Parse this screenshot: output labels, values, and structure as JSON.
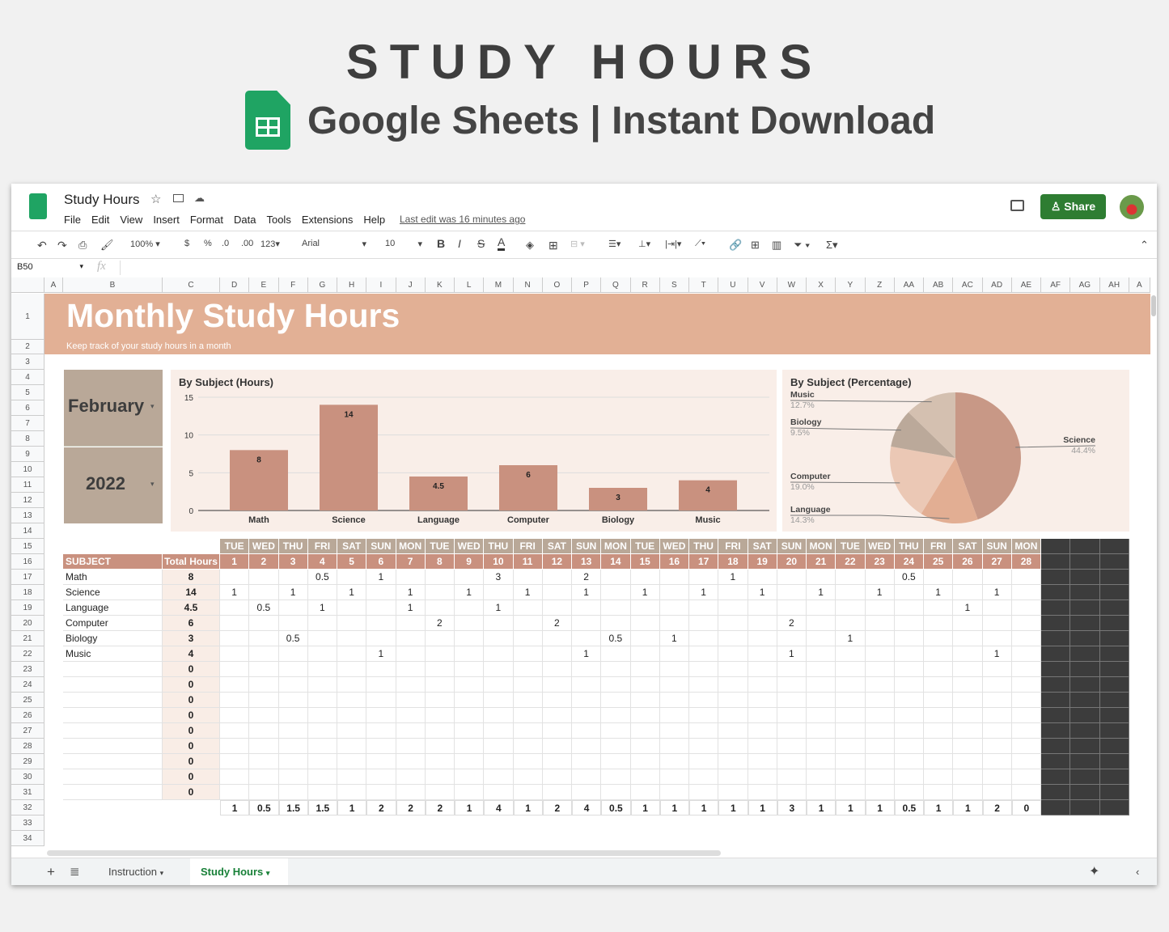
{
  "hero": {
    "title": "STUDY HOURS",
    "subtitle": "Google Sheets | Instant Download"
  },
  "doc": {
    "title": "Study Hours",
    "last_edit": "Last edit was 16 minutes ago",
    "share": "Share"
  },
  "menu": [
    "File",
    "Edit",
    "View",
    "Insert",
    "Format",
    "Data",
    "Tools",
    "Extensions",
    "Help"
  ],
  "toolbar": {
    "zoom": "100%",
    "currency": "$",
    "percent": "%",
    "dec_less": ".0",
    "dec_more": ".00",
    "format": "123",
    "font": "Arial",
    "size": "10"
  },
  "formula_bar": {
    "cell_ref": "B50",
    "fx": "fx",
    "value": ""
  },
  "columns": [
    "A",
    "B",
    "C",
    "D",
    "E",
    "F",
    "G",
    "H",
    "I",
    "J",
    "K",
    "L",
    "M",
    "N",
    "O",
    "P",
    "Q",
    "R",
    "S",
    "T",
    "U",
    "V",
    "W",
    "X",
    "Y",
    "Z",
    "AA",
    "AB",
    "AC",
    "AD",
    "AE",
    "AF",
    "AG",
    "AH",
    "A"
  ],
  "sheet": {
    "title": "Monthly Study Hours",
    "subtitle": "Keep track of your study hours in a month",
    "month": "February",
    "year": "2022",
    "subject_header": "SUBJECT",
    "total_header": "Total Hours",
    "day_names": [
      "TUE",
      "WED",
      "THU",
      "FRI",
      "SAT",
      "SUN",
      "MON",
      "TUE",
      "WED",
      "THU",
      "FRI",
      "SAT",
      "SUN",
      "MON",
      "TUE",
      "WED",
      "THU",
      "FRI",
      "SAT",
      "SUN",
      "MON",
      "TUE",
      "WED",
      "THU",
      "FRI",
      "SAT",
      "SUN",
      "MON"
    ],
    "subjects": [
      {
        "name": "Math",
        "total": "8",
        "hours": {
          "4": "0.5",
          "6": "1",
          "10": "3",
          "13": "2",
          "18": "1",
          "24": "0.5"
        }
      },
      {
        "name": "Science",
        "total": "14",
        "hours": {
          "1": "1",
          "3": "1",
          "5": "1",
          "7": "1",
          "9": "1",
          "11": "1",
          "13": "1",
          "15": "1",
          "17": "1",
          "19": "1",
          "21": "1",
          "23": "1",
          "25": "1",
          "27": "1"
        }
      },
      {
        "name": "Language",
        "total": "4.5",
        "hours": {
          "2": "0.5",
          "4": "1",
          "7": "1",
          "10": "1",
          "26": "1"
        }
      },
      {
        "name": "Computer",
        "total": "6",
        "hours": {
          "8": "2",
          "12": "2",
          "20": "2"
        }
      },
      {
        "name": "Biology",
        "total": "3",
        "hours": {
          "3": "0.5",
          "14": "0.5",
          "16": "1",
          "22": "1"
        }
      },
      {
        "name": "Music",
        "total": "4",
        "hours": {
          "6": "1",
          "13": "1",
          "20": "1",
          "27": "1"
        }
      },
      {
        "name": "",
        "total": "0",
        "hours": {}
      },
      {
        "name": "",
        "total": "0",
        "hours": {}
      },
      {
        "name": "",
        "total": "0",
        "hours": {}
      },
      {
        "name": "",
        "total": "0",
        "hours": {}
      },
      {
        "name": "",
        "total": "0",
        "hours": {}
      },
      {
        "name": "",
        "total": "0",
        "hours": {}
      },
      {
        "name": "",
        "total": "0",
        "hours": {}
      },
      {
        "name": "",
        "total": "0",
        "hours": {}
      },
      {
        "name": "",
        "total": "0",
        "hours": {}
      }
    ],
    "day_totals": [
      "1",
      "0.5",
      "1.5",
      "1.5",
      "1",
      "2",
      "2",
      "2",
      "1",
      "4",
      "1",
      "2",
      "4",
      "0.5",
      "1",
      "1",
      "1",
      "1",
      "1",
      "3",
      "1",
      "1",
      "1",
      "0.5",
      "1",
      "1",
      "2",
      "0"
    ]
  },
  "tabs": [
    "Instruction",
    "Study Hours"
  ],
  "colors": {
    "banner": "#e2b095",
    "month_box": "#b9a898",
    "bar": "#c9917f",
    "chart_bg": "#f9eee8",
    "share": "#2e7d32",
    "dark": "#3c3c3c"
  },
  "chart_data": [
    {
      "type": "bar",
      "title": "By Subject (Hours)",
      "categories": [
        "Math",
        "Science",
        "Language",
        "Computer",
        "Biology",
        "Music"
      ],
      "values": [
        8,
        14,
        4.5,
        6,
        3,
        4
      ],
      "ylim": [
        0,
        15
      ],
      "yticks": [
        "0",
        "5",
        "10",
        "15"
      ],
      "grid": true
    },
    {
      "type": "pie",
      "title": "By Subject (Percentage)",
      "labels": [
        "Science",
        "Language",
        "Computer",
        "Biology",
        "Music"
      ],
      "values": [
        44.4,
        14.3,
        19.0,
        9.5,
        12.7
      ],
      "value_labels": [
        "44.4%",
        "14.3%",
        "19.0%",
        "9.5%",
        "12.7%"
      ],
      "colors": [
        "#c89886",
        "#e2ae93",
        "#ebc8b5",
        "#bba99a",
        "#d4c0b0"
      ]
    }
  ]
}
